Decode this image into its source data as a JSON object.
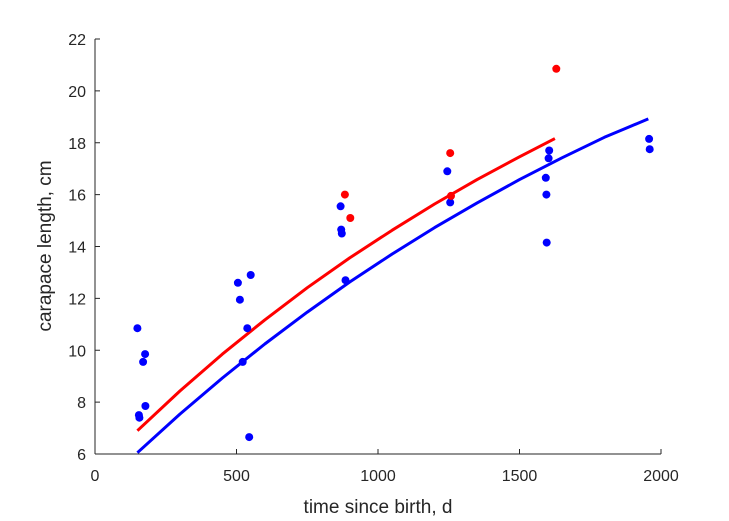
{
  "chart_data": {
    "type": "scatter",
    "title": "",
    "xlabel": "time since birth, d",
    "ylabel": "carapace length, cm",
    "xlim": [
      0,
      2000
    ],
    "ylim": [
      6,
      22
    ],
    "xticks": [
      0,
      500,
      1000,
      1500,
      2000
    ],
    "yticks": [
      6,
      8,
      10,
      12,
      14,
      16,
      18,
      20,
      22
    ],
    "grid": false,
    "legend": "none",
    "series": [
      {
        "kind": "points",
        "color": "#0000ff",
        "points": [
          [
            150,
            10.85
          ],
          [
            155,
            7.5
          ],
          [
            157,
            7.4
          ],
          [
            170,
            9.55
          ],
          [
            177,
            9.85
          ],
          [
            178,
            7.85
          ],
          [
            505,
            12.6
          ],
          [
            512,
            11.95
          ],
          [
            522,
            9.55
          ],
          [
            538,
            10.85
          ],
          [
            545,
            6.65
          ],
          [
            550,
            12.9
          ],
          [
            868,
            15.55
          ],
          [
            870,
            14.65
          ],
          [
            872,
            14.5
          ],
          [
            885,
            12.7
          ],
          [
            1245,
            16.9
          ],
          [
            1255,
            15.7
          ],
          [
            1593,
            16.65
          ],
          [
            1595,
            16.0
          ],
          [
            1596,
            14.15
          ],
          [
            1603,
            17.4
          ],
          [
            1605,
            17.7
          ],
          [
            1958,
            18.15
          ],
          [
            1960,
            17.75
          ]
        ]
      },
      {
        "kind": "points",
        "color": "#ff0000",
        "points": [
          [
            883,
            16.0
          ],
          [
            902,
            15.1
          ],
          [
            1255,
            17.6
          ],
          [
            1258,
            15.95
          ],
          [
            1630,
            20.85
          ]
        ]
      },
      {
        "kind": "line",
        "color": "#0000ff",
        "x": [
          150,
          300,
          450,
          600,
          750,
          900,
          1050,
          1200,
          1350,
          1500,
          1650,
          1800,
          1955
        ],
        "y": [
          6.05,
          7.54,
          8.93,
          10.24,
          11.47,
          12.63,
          13.71,
          14.73,
          15.68,
          16.58,
          17.42,
          18.21,
          18.92
        ]
      },
      {
        "kind": "line",
        "color": "#ff0000",
        "x": [
          150,
          300,
          450,
          600,
          750,
          900,
          1050,
          1200,
          1350,
          1500,
          1625
        ],
        "y": [
          6.9,
          8.43,
          9.85,
          11.17,
          12.41,
          13.56,
          14.63,
          15.64,
          16.58,
          17.46,
          18.16
        ]
      }
    ]
  }
}
